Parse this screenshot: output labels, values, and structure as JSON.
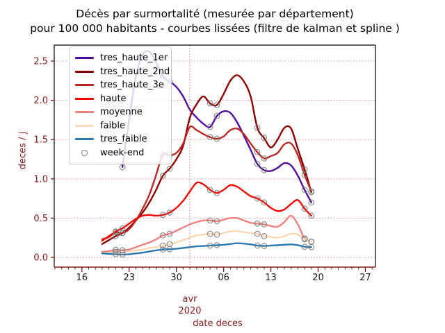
{
  "figure": {
    "title_line1": "Décès par surmortalité (mesurée par département)",
    "title_line2": "pour 100 000 habitants - courbes lissées (filtre de kalman et spline )"
  },
  "chart_data": {
    "type": "line",
    "title": "Décès par surmortalité (mesurée par département) pour 100 000 habitants - courbes lissées (filtre de kalman et spline )",
    "xlabel": "date deces",
    "ylabel": "deces / j",
    "x_month_label": "avr",
    "x_year_label": "2020",
    "y_tick_labels": [
      "0.0",
      "0.5",
      "1.0",
      "1.5",
      "2.0",
      "2.5"
    ],
    "y_tick_values": [
      0.0,
      0.5,
      1.0,
      1.5,
      2.0,
      2.5
    ],
    "ylim": [
      -0.124,
      2.703
    ],
    "xlim_days_from_mar16": [
      -4.1,
      43.5
    ],
    "x_major_ticks": [
      {
        "label": "16",
        "day": 0
      },
      {
        "label": "23",
        "day": 7
      },
      {
        "label": "30",
        "day": 14
      },
      {
        "label": "06",
        "day": 21
      },
      {
        "label": "13",
        "day": 28
      },
      {
        "label": "20",
        "day": 35
      },
      {
        "label": "27",
        "day": 42
      }
    ],
    "minor_tick_days": [
      -4,
      43
    ],
    "month_boundary_day": 16,
    "grid": true,
    "grid_color": "#dd8f8f",
    "month_line_color": "#c97272",
    "axis_text_color": "#8b1a1a",
    "x_tick_label_color": "#1a1a1a",
    "spine_color_bottom": "#8b1a1a",
    "spine_color_other": "#000000",
    "marker_color": "#7a7a7a",
    "legend_position": "upper left",
    "weekend_label": "week-end",
    "series_start_day": 3,
    "dates": [
      "2020-03-19",
      "2020-03-20",
      "2020-03-21",
      "2020-03-22",
      "2020-03-23",
      "2020-03-24",
      "2020-03-25",
      "2020-03-26",
      "2020-03-27",
      "2020-03-28",
      "2020-03-29",
      "2020-03-30",
      "2020-03-31",
      "2020-04-01",
      "2020-04-02",
      "2020-04-03",
      "2020-04-04",
      "2020-04-05",
      "2020-04-06",
      "2020-04-07",
      "2020-04-08",
      "2020-04-09",
      "2020-04-10",
      "2020-04-11",
      "2020-04-12",
      "2020-04-13",
      "2020-04-14",
      "2020-04-15",
      "2020-04-16",
      "2020-04-17",
      "2020-04-18",
      "2020-04-19"
    ],
    "weekend_indices": [
      2,
      3,
      9,
      10,
      16,
      17,
      23,
      24,
      30,
      31
    ],
    "series": [
      {
        "name": "tres_haute_1er",
        "color": "#530d9e",
        "values": [
          null,
          null,
          null,
          1.15,
          1.75,
          2.3,
          2.58,
          2.62,
          2.48,
          2.3,
          2.24,
          2.17,
          2.05,
          1.88,
          1.78,
          1.7,
          1.66,
          1.8,
          1.86,
          1.84,
          1.72,
          1.55,
          1.37,
          1.19,
          1.11,
          1.1,
          1.14,
          1.2,
          1.17,
          1.04,
          0.86,
          0.7
        ]
      },
      {
        "name": "tres_haute_2nd",
        "color": "#8b0000",
        "values": [
          0.17,
          0.22,
          0.27,
          0.31,
          0.38,
          0.47,
          0.57,
          0.7,
          0.86,
          1.04,
          1.13,
          1.25,
          1.42,
          1.78,
          1.95,
          2.05,
          1.96,
          1.94,
          2.08,
          2.25,
          2.32,
          2.24,
          2.05,
          1.65,
          1.52,
          1.4,
          1.5,
          1.65,
          1.64,
          1.38,
          1.12,
          0.83
        ]
      },
      {
        "name": "tres_haute_3e",
        "color": "#bc2724",
        "values": [
          0.21,
          0.27,
          0.32,
          0.31,
          0.36,
          0.47,
          0.62,
          0.8,
          1.05,
          1.31,
          1.3,
          1.33,
          1.45,
          1.66,
          1.62,
          1.57,
          1.53,
          1.51,
          1.54,
          1.62,
          1.64,
          1.57,
          1.45,
          1.34,
          1.26,
          1.29,
          1.33,
          1.44,
          1.45,
          1.3,
          1.05,
          0.84
        ]
      },
      {
        "name": "haute",
        "color": "#f40000",
        "values": [
          0.23,
          0.26,
          0.33,
          0.37,
          0.43,
          0.49,
          0.53,
          0.54,
          0.53,
          0.54,
          0.57,
          0.63,
          0.72,
          0.84,
          0.95,
          0.93,
          0.86,
          0.82,
          0.86,
          0.92,
          0.9,
          0.84,
          0.78,
          0.75,
          0.7,
          0.63,
          0.59,
          0.61,
          0.68,
          0.73,
          0.62,
          0.53
        ]
      },
      {
        "name": "moyenne",
        "color": "#f08080",
        "values": [
          0.07,
          0.08,
          0.095,
          0.09,
          0.1,
          0.13,
          0.16,
          0.19,
          0.23,
          0.28,
          0.3,
          0.34,
          0.38,
          0.42,
          0.45,
          0.47,
          0.47,
          0.46,
          0.48,
          0.5,
          0.5,
          0.47,
          0.44,
          0.43,
          0.42,
          0.4,
          0.39,
          0.45,
          0.53,
          0.42,
          0.24,
          0.2
        ]
      },
      {
        "name": "faible",
        "color": "#fad8b3",
        "values": [
          0.05,
          0.06,
          0.07,
          0.065,
          0.075,
          0.09,
          0.1,
          0.12,
          0.13,
          0.15,
          0.17,
          0.19,
          0.22,
          0.25,
          0.28,
          0.29,
          0.3,
          0.29,
          0.31,
          0.33,
          0.335,
          0.32,
          0.31,
          0.3,
          0.27,
          0.26,
          0.25,
          0.27,
          0.3,
          0.29,
          0.23,
          0.2
        ]
      },
      {
        "name": "tres_faible",
        "color": "#2878b5",
        "values": [
          0.05,
          0.045,
          0.04,
          0.035,
          0.04,
          0.05,
          0.06,
          0.075,
          0.09,
          0.1,
          0.105,
          0.11,
          0.12,
          0.13,
          0.14,
          0.145,
          0.15,
          0.155,
          0.16,
          0.17,
          0.18,
          0.175,
          0.165,
          0.15,
          0.145,
          0.15,
          0.155,
          0.16,
          0.165,
          0.155,
          0.135,
          0.13
        ]
      }
    ]
  }
}
